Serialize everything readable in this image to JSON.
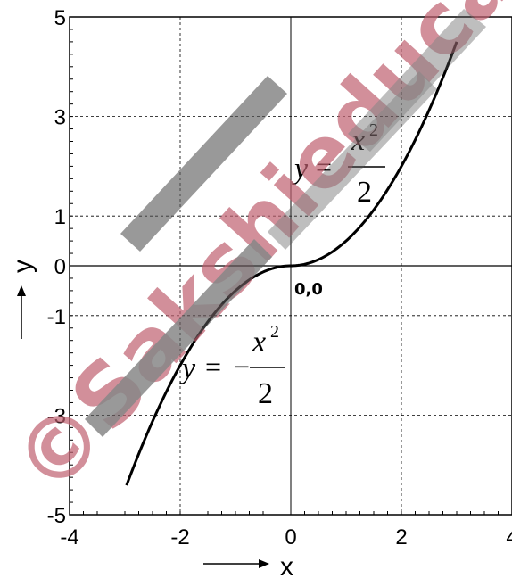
{
  "chart_data": {
    "type": "line",
    "xlabel": "x",
    "ylabel": "y",
    "xlim": [
      -4,
      4
    ],
    "ylim": [
      -5,
      5
    ],
    "x_ticks": [
      -4,
      -2,
      0,
      2,
      4
    ],
    "y_ticks": [
      5,
      3,
      1,
      0,
      -1,
      -3,
      -5
    ],
    "x_tick_labels": [
      "-4",
      "-2",
      "0",
      "2",
      "4"
    ],
    "y_tick_labels": [
      "5",
      "3",
      "1",
      "0",
      "-1",
      "-3",
      "-5"
    ],
    "grid": true,
    "series": [
      {
        "expression": "y = x|x|/2",
        "x": [
          -2.97,
          -2.5,
          -2.0,
          -1.5,
          -1.0,
          -0.5,
          0,
          0.5,
          1.0,
          1.5,
          2.0,
          2.5,
          3.0
        ],
        "y": [
          -4.41,
          -3.125,
          -2.0,
          -1.125,
          -0.5,
          -0.125,
          0,
          0.125,
          0.5,
          1.125,
          2.0,
          3.125,
          4.5
        ],
        "color": "#000000"
      }
    ],
    "annotations": {
      "origin": "0,0",
      "positive_branch": {
        "lhs": "y",
        "eq": "=",
        "num": "x",
        "sup": "2",
        "den": "2"
      },
      "negative_branch": {
        "lhs": "y",
        "eq": "=",
        "minus": "−",
        "num": "x",
        "sup": "2",
        "den": "2"
      }
    }
  },
  "watermark": {
    "text": "©Sakshieducation",
    "color": "#c06070",
    "secondary_color": "#555555"
  }
}
